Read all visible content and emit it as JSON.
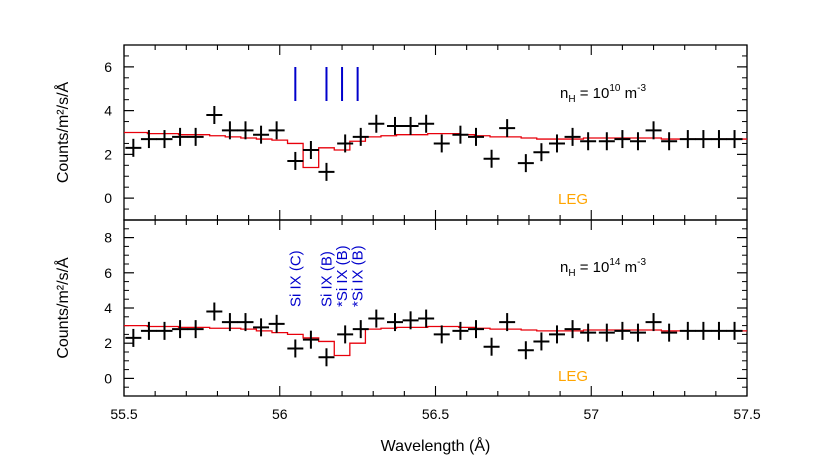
{
  "chart_data": {
    "type": "line",
    "xlabel": "Wavelength (Å)",
    "xlim": [
      55.5,
      57.5
    ],
    "x_ticks": [
      "55.5",
      "56",
      "56.5",
      "57",
      "57.5"
    ],
    "colors": {
      "data": "#000000",
      "model": "#e8000b",
      "lines": "#0000cc",
      "instrument": "#ffa500"
    },
    "panels": [
      {
        "ylabel": "Counts/m²/s/Å",
        "ylim": [
          -1,
          7
        ],
        "y_ticks": [
          "0",
          "2",
          "4",
          "6"
        ],
        "annotation_base": "n",
        "annotation_sub": "H",
        "annotation_mid": " = 10",
        "annotation_sup": "10",
        "annotation_unit": " m",
        "annotation_unit_sup": "-3",
        "instrument_label": "LEG",
        "line_markers": [
          56.05,
          56.15,
          56.2,
          56.25
        ],
        "line_labels": [],
        "series": [
          {
            "kind": "data",
            "x": [
              55.53,
              55.58,
              55.63,
              55.68,
              55.73,
              55.79,
              55.84,
              55.89,
              55.94,
              55.99,
              56.05,
              56.1,
              56.15,
              56.21,
              56.26,
              56.31,
              56.37,
              56.42,
              56.47,
              56.52,
              56.58,
              56.63,
              56.68,
              56.73,
              56.79,
              56.84,
              56.89,
              56.94,
              56.99,
              57.05,
              57.1,
              57.15,
              57.2,
              57.25,
              57.31,
              57.36,
              57.41,
              57.46
            ],
            "y": [
              2.3,
              2.7,
              2.7,
              2.8,
              2.8,
              3.8,
              3.1,
              3.1,
              2.9,
              3.1,
              1.7,
              2.2,
              1.2,
              2.5,
              2.8,
              3.4,
              3.3,
              3.3,
              3.4,
              2.5,
              2.9,
              2.8,
              1.8,
              3.2,
              1.6,
              2.1,
              2.5,
              2.8,
              2.6,
              2.6,
              2.7,
              2.6,
              3.1,
              2.6,
              2.7,
              2.7,
              2.7,
              2.7
            ]
          },
          {
            "kind": "model",
            "x": [
              55.5,
              55.55,
              55.6,
              55.65,
              55.7,
              55.75,
              55.8,
              55.85,
              55.9,
              55.95,
              56.0,
              56.05,
              56.1,
              56.15,
              56.2,
              56.25,
              56.3,
              56.35,
              56.4,
              56.45,
              56.5,
              56.55,
              56.6,
              56.65,
              56.7,
              56.75,
              56.8,
              56.85,
              56.9,
              56.95,
              57.0,
              57.05,
              57.1,
              57.15,
              57.2,
              57.25,
              57.3,
              57.35,
              57.4,
              57.45,
              57.5
            ],
            "y": [
              3.0,
              3.0,
              2.95,
              2.95,
              2.9,
              2.9,
              2.85,
              2.8,
              2.75,
              2.7,
              2.65,
              2.5,
              1.4,
              2.3,
              2.2,
              2.6,
              2.8,
              2.85,
              2.9,
              2.9,
              2.95,
              2.95,
              2.9,
              2.85,
              2.8,
              2.8,
              2.75,
              2.7,
              2.7,
              2.7,
              2.75,
              2.75,
              2.75,
              2.75,
              2.75,
              2.7,
              2.7,
              2.7,
              2.7,
              2.7,
              2.7
            ]
          }
        ]
      },
      {
        "ylabel": "Counts/m²/s/Å",
        "ylim": [
          -1,
          9
        ],
        "y_ticks": [
          "0",
          "2",
          "4",
          "6",
          "8"
        ],
        "annotation_base": "n",
        "annotation_sub": "H",
        "annotation_mid": " = 10",
        "annotation_sup": "14",
        "annotation_unit": " m",
        "annotation_unit_sup": "-3",
        "instrument_label": "LEG",
        "line_markers": [],
        "line_labels": [
          {
            "x": 56.05,
            "text": "Si IX (C)"
          },
          {
            "x": 56.15,
            "text": "Si IX (B)"
          },
          {
            "x": 56.2,
            "text": "*Si IX (B)"
          },
          {
            "x": 56.25,
            "text": "*Si IX (B)"
          }
        ],
        "series": [
          {
            "kind": "data",
            "x": [
              55.53,
              55.58,
              55.63,
              55.68,
              55.73,
              55.79,
              55.84,
              55.89,
              55.94,
              55.99,
              56.05,
              56.1,
              56.15,
              56.21,
              56.26,
              56.31,
              56.37,
              56.42,
              56.47,
              56.52,
              56.58,
              56.63,
              56.68,
              56.73,
              56.79,
              56.84,
              56.89,
              56.94,
              56.99,
              57.05,
              57.1,
              57.15,
              57.2,
              57.25,
              57.31,
              57.36,
              57.41,
              57.46
            ],
            "y": [
              2.3,
              2.7,
              2.7,
              2.8,
              2.8,
              3.8,
              3.2,
              3.2,
              2.9,
              3.1,
              1.7,
              2.2,
              1.2,
              2.5,
              2.8,
              3.4,
              3.2,
              3.3,
              3.4,
              2.5,
              2.7,
              2.8,
              1.8,
              3.2,
              1.6,
              2.1,
              2.5,
              2.8,
              2.6,
              2.6,
              2.7,
              2.6,
              3.2,
              2.6,
              2.7,
              2.7,
              2.7,
              2.7
            ]
          },
          {
            "kind": "model",
            "x": [
              55.5,
              55.55,
              55.6,
              55.65,
              55.7,
              55.75,
              55.8,
              55.85,
              55.9,
              55.95,
              56.0,
              56.05,
              56.1,
              56.15,
              56.2,
              56.25,
              56.3,
              56.35,
              56.4,
              56.45,
              56.5,
              56.55,
              56.6,
              56.65,
              56.7,
              56.75,
              56.8,
              56.85,
              56.9,
              56.95,
              57.0,
              57.05,
              57.1,
              57.15,
              57.2,
              57.25,
              57.3,
              57.35,
              57.4,
              57.45,
              57.5
            ],
            "y": [
              3.0,
              3.0,
              2.95,
              2.95,
              2.9,
              2.9,
              2.85,
              2.85,
              2.8,
              2.7,
              2.6,
              2.5,
              2.3,
              2.1,
              1.3,
              2.0,
              2.8,
              2.85,
              2.9,
              2.9,
              2.95,
              2.95,
              2.9,
              2.85,
              2.8,
              2.8,
              2.75,
              2.7,
              2.7,
              2.7,
              2.75,
              2.75,
              2.75,
              2.75,
              2.75,
              2.7,
              2.7,
              2.7,
              2.7,
              2.7,
              2.7
            ]
          }
        ]
      }
    ]
  }
}
